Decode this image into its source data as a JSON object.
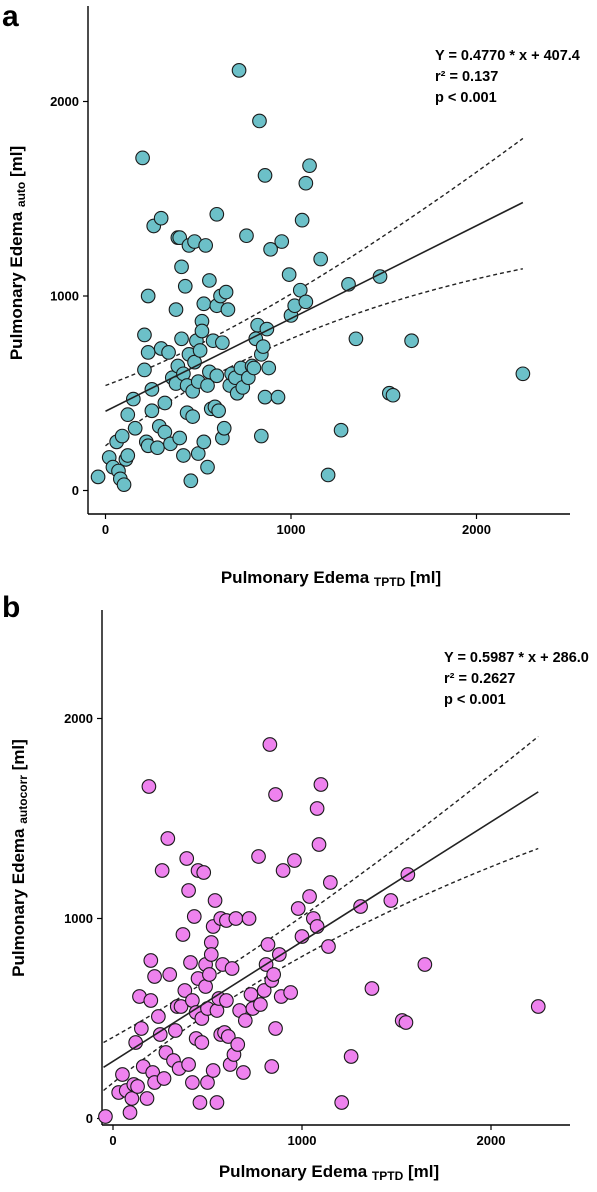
{
  "chart_data": [
    {
      "type": "scatter",
      "panel_label": "a",
      "xlabel": "Pulmonary Edema",
      "xlabel_sub": "TPTD",
      "xlabel_unit": "[ml]",
      "ylabel": "Pulmonary Edema",
      "ylabel_sub": "auto",
      "ylabel_unit": "[ml]",
      "xlim": [
        -100,
        2500
      ],
      "ylim": [
        -100,
        2500
      ],
      "xticks": [
        0,
        1000,
        2000
      ],
      "yticks": [
        0,
        1000,
        2000
      ],
      "grid": false,
      "marker_color": "#6cc0c8",
      "annotations": [
        "Y = 0.4770 * x + 407.4",
        "r² = 0.137",
        "p < 0.001"
      ],
      "regression": {
        "slope": 0.477,
        "intercept": 407.4,
        "x_range": [
          0,
          2250
        ]
      },
      "ci_lower": [
        [
          0,
          230
        ],
        [
          1000,
          780
        ],
        [
          2250,
          1140
        ]
      ],
      "ci_upper": [
        [
          0,
          540
        ],
        [
          1000,
          1010
        ],
        [
          2250,
          1810
        ]
      ],
      "points": [
        [
          -40,
          70
        ],
        [
          20,
          170
        ],
        [
          40,
          120
        ],
        [
          60,
          250
        ],
        [
          70,
          100
        ],
        [
          80,
          60
        ],
        [
          90,
          280
        ],
        [
          100,
          30
        ],
        [
          110,
          160
        ],
        [
          120,
          180
        ],
        [
          120,
          390
        ],
        [
          150,
          470
        ],
        [
          160,
          320
        ],
        [
          200,
          1710
        ],
        [
          210,
          620
        ],
        [
          210,
          800
        ],
        [
          220,
          250
        ],
        [
          230,
          230
        ],
        [
          230,
          1000
        ],
        [
          230,
          710
        ],
        [
          250,
          520
        ],
        [
          250,
          410
        ],
        [
          260,
          1360
        ],
        [
          280,
          220
        ],
        [
          290,
          330
        ],
        [
          300,
          1400
        ],
        [
          300,
          730
        ],
        [
          320,
          300
        ],
        [
          320,
          450
        ],
        [
          340,
          710
        ],
        [
          350,
          240
        ],
        [
          360,
          580
        ],
        [
          380,
          550
        ],
        [
          380,
          930
        ],
        [
          390,
          640
        ],
        [
          390,
          1300
        ],
        [
          400,
          1300
        ],
        [
          400,
          270
        ],
        [
          410,
          1150
        ],
        [
          410,
          780
        ],
        [
          420,
          180
        ],
        [
          420,
          600
        ],
        [
          430,
          1050
        ],
        [
          440,
          400
        ],
        [
          440,
          540
        ],
        [
          450,
          1260
        ],
        [
          450,
          700
        ],
        [
          460,
          50
        ],
        [
          470,
          510
        ],
        [
          470,
          380
        ],
        [
          480,
          1280
        ],
        [
          480,
          660
        ],
        [
          490,
          770
        ],
        [
          500,
          190
        ],
        [
          500,
          560
        ],
        [
          510,
          720
        ],
        [
          520,
          870
        ],
        [
          520,
          820
        ],
        [
          530,
          250
        ],
        [
          530,
          960
        ],
        [
          540,
          1260
        ],
        [
          550,
          120
        ],
        [
          550,
          540
        ],
        [
          560,
          610
        ],
        [
          560,
          1080
        ],
        [
          570,
          420
        ],
        [
          580,
          770
        ],
        [
          590,
          430
        ],
        [
          600,
          1420
        ],
        [
          600,
          590
        ],
        [
          600,
          950
        ],
        [
          610,
          410
        ],
        [
          620,
          1000
        ],
        [
          630,
          270
        ],
        [
          630,
          760
        ],
        [
          640,
          320
        ],
        [
          650,
          1020
        ],
        [
          660,
          930
        ],
        [
          670,
          540
        ],
        [
          680,
          600
        ],
        [
          700,
          580
        ],
        [
          710,
          500
        ],
        [
          720,
          2160
        ],
        [
          730,
          630
        ],
        [
          740,
          530
        ],
        [
          760,
          1310
        ],
        [
          770,
          580
        ],
        [
          790,
          640
        ],
        [
          800,
          630
        ],
        [
          810,
          780
        ],
        [
          820,
          850
        ],
        [
          830,
          1900
        ],
        [
          840,
          280
        ],
        [
          840,
          700
        ],
        [
          850,
          740
        ],
        [
          860,
          1620
        ],
        [
          860,
          480
        ],
        [
          870,
          830
        ],
        [
          880,
          630
        ],
        [
          890,
          1240
        ],
        [
          930,
          480
        ],
        [
          950,
          1280
        ],
        [
          990,
          1110
        ],
        [
          1000,
          900
        ],
        [
          1020,
          950
        ],
        [
          1050,
          1030
        ],
        [
          1060,
          1390
        ],
        [
          1080,
          1580
        ],
        [
          1080,
          970
        ],
        [
          1100,
          1670
        ],
        [
          1160,
          1190
        ],
        [
          1200,
          80
        ],
        [
          1270,
          310
        ],
        [
          1310,
          1060
        ],
        [
          1350,
          780
        ],
        [
          1480,
          1100
        ],
        [
          1530,
          500
        ],
        [
          1550,
          490
        ],
        [
          1650,
          770
        ],
        [
          2250,
          600
        ]
      ]
    },
    {
      "type": "scatter",
      "panel_label": "b",
      "xlabel": "Pulmonary Edema",
      "xlabel_sub": "TPTD",
      "xlabel_unit": "[ml]",
      "ylabel": "Pulmonary Edema",
      "ylabel_sub": "autocorr",
      "ylabel_unit": "[ml]",
      "xlim": [
        -100,
        2500
      ],
      "ylim": [
        -100,
        2500
      ],
      "xticks": [
        0,
        1000,
        2000
      ],
      "yticks": [
        0,
        1000,
        2000
      ],
      "grid": false,
      "marker_color": "#ee82ee",
      "annotations": [
        "Y = 0.5987 * x + 286.0",
        "r² = 0.2627",
        "p < 0.001"
      ],
      "regression": {
        "slope": 0.5987,
        "intercept": 286.0,
        "x_range": [
          -50,
          2250
        ]
      },
      "ci_lower": [
        [
          -50,
          140
        ],
        [
          1000,
          810
        ],
        [
          2250,
          1350
        ]
      ],
      "ci_upper": [
        [
          -50,
          380
        ],
        [
          1000,
          1010
        ],
        [
          2250,
          1910
        ]
      ],
      "points": [
        [
          -40,
          10
        ],
        [
          30,
          130
        ],
        [
          50,
          220
        ],
        [
          70,
          140
        ],
        [
          90,
          30
        ],
        [
          100,
          100
        ],
        [
          110,
          170
        ],
        [
          120,
          380
        ],
        [
          130,
          160
        ],
        [
          140,
          610
        ],
        [
          150,
          450
        ],
        [
          160,
          260
        ],
        [
          180,
          100
        ],
        [
          190,
          1660
        ],
        [
          200,
          590
        ],
        [
          200,
          790
        ],
        [
          210,
          230
        ],
        [
          220,
          180
        ],
        [
          220,
          710
        ],
        [
          240,
          510
        ],
        [
          250,
          420
        ],
        [
          260,
          1240
        ],
        [
          270,
          200
        ],
        [
          280,
          330
        ],
        [
          290,
          1400
        ],
        [
          300,
          720
        ],
        [
          320,
          290
        ],
        [
          330,
          440
        ],
        [
          340,
          560
        ],
        [
          350,
          250
        ],
        [
          360,
          560
        ],
        [
          370,
          920
        ],
        [
          380,
          640
        ],
        [
          390,
          1300
        ],
        [
          400,
          1140
        ],
        [
          400,
          270
        ],
        [
          410,
          780
        ],
        [
          420,
          180
        ],
        [
          420,
          590
        ],
        [
          430,
          1010
        ],
        [
          440,
          400
        ],
        [
          440,
          530
        ],
        [
          450,
          1240
        ],
        [
          450,
          700
        ],
        [
          460,
          80
        ],
        [
          470,
          500
        ],
        [
          470,
          380
        ],
        [
          480,
          1230
        ],
        [
          490,
          660
        ],
        [
          490,
          770
        ],
        [
          500,
          180
        ],
        [
          500,
          550
        ],
        [
          510,
          720
        ],
        [
          520,
          880
        ],
        [
          520,
          820
        ],
        [
          530,
          240
        ],
        [
          530,
          960
        ],
        [
          540,
          1090
        ],
        [
          550,
          80
        ],
        [
          550,
          540
        ],
        [
          560,
          600
        ],
        [
          570,
          1000
        ],
        [
          570,
          420
        ],
        [
          580,
          770
        ],
        [
          590,
          430
        ],
        [
          600,
          990
        ],
        [
          600,
          590
        ],
        [
          610,
          410
        ],
        [
          620,
          270
        ],
        [
          630,
          750
        ],
        [
          640,
          320
        ],
        [
          650,
          1000
        ],
        [
          660,
          370
        ],
        [
          670,
          540
        ],
        [
          690,
          230
        ],
        [
          700,
          490
        ],
        [
          720,
          1000
        ],
        [
          730,
          620
        ],
        [
          740,
          550
        ],
        [
          770,
          1310
        ],
        [
          780,
          570
        ],
        [
          800,
          640
        ],
        [
          810,
          770
        ],
        [
          820,
          870
        ],
        [
          830,
          1870
        ],
        [
          840,
          260
        ],
        [
          840,
          690
        ],
        [
          850,
          720
        ],
        [
          860,
          1620
        ],
        [
          860,
          450
        ],
        [
          880,
          820
        ],
        [
          890,
          610
        ],
        [
          900,
          1240
        ],
        [
          940,
          630
        ],
        [
          960,
          1290
        ],
        [
          980,
          1050
        ],
        [
          1000,
          910
        ],
        [
          1040,
          1110
        ],
        [
          1060,
          1000
        ],
        [
          1080,
          1550
        ],
        [
          1080,
          960
        ],
        [
          1090,
          1370
        ],
        [
          1100,
          1670
        ],
        [
          1140,
          860
        ],
        [
          1150,
          1180
        ],
        [
          1210,
          80
        ],
        [
          1260,
          310
        ],
        [
          1310,
          1060
        ],
        [
          1370,
          650
        ],
        [
          1470,
          1090
        ],
        [
          1530,
          490
        ],
        [
          1550,
          480
        ],
        [
          1560,
          1220
        ],
        [
          1650,
          770
        ],
        [
          2250,
          560
        ]
      ]
    }
  ]
}
